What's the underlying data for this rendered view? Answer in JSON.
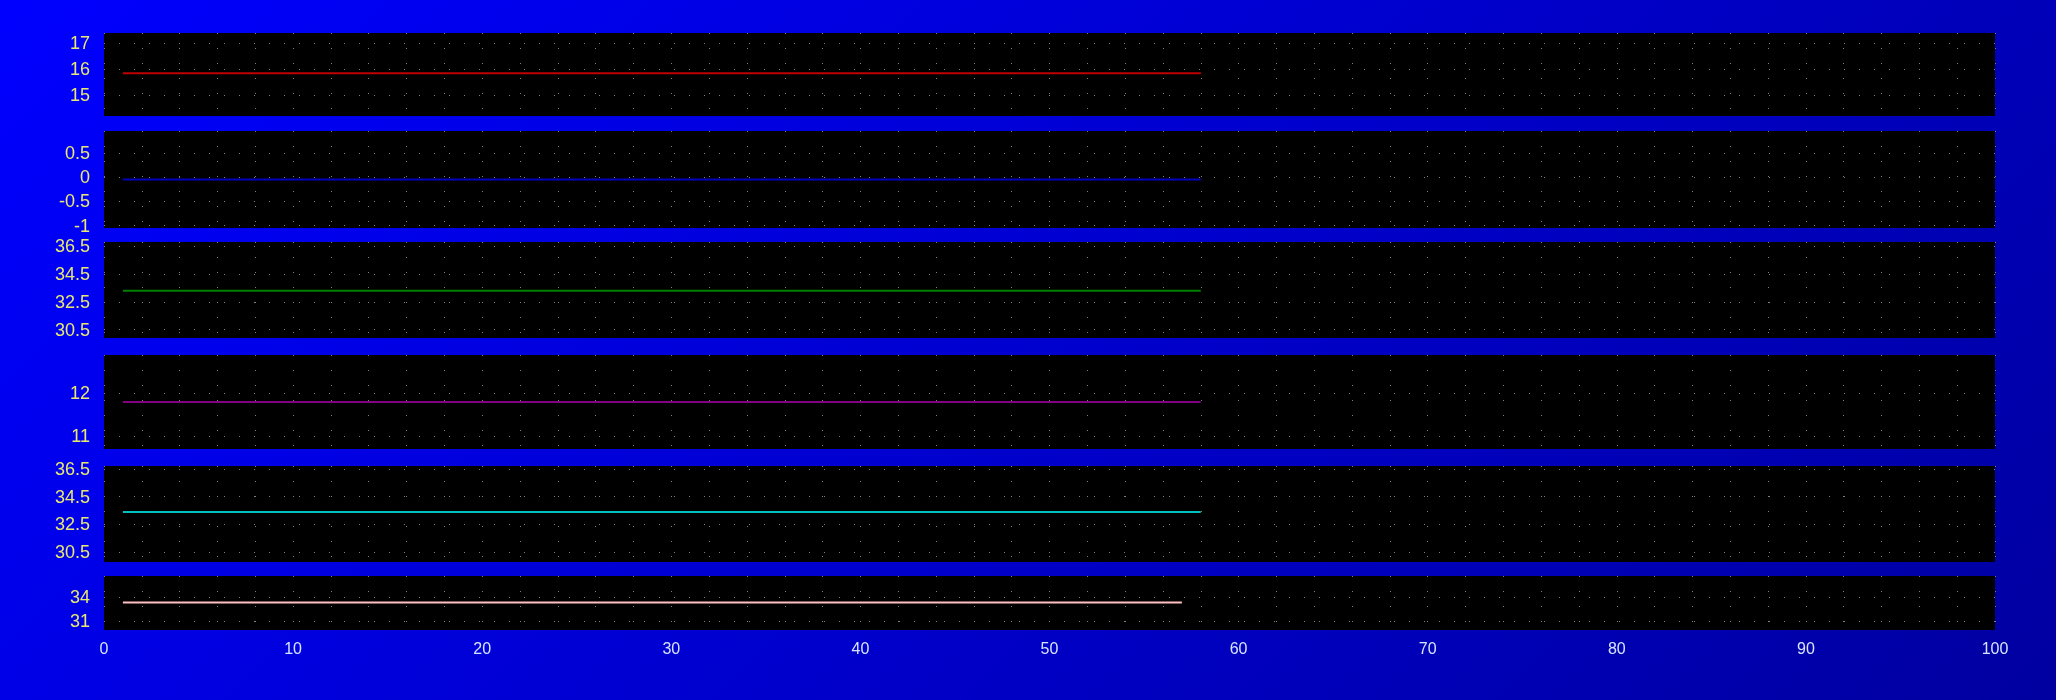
{
  "chart_data": [
    {
      "type": "line",
      "x": [
        1,
        58
      ],
      "values": [
        15.85,
        15.85
      ],
      "color": "#c00000",
      "xlim": [
        0,
        100
      ],
      "xticks": [
        0,
        10,
        20,
        30,
        40,
        50,
        60,
        70,
        80,
        90,
        100
      ],
      "ylim": [
        14.2,
        17.4
      ],
      "yticks": [
        15,
        16,
        17
      ],
      "grid": true,
      "tick_labels": "y"
    },
    {
      "type": "line",
      "x": [
        1,
        58
      ],
      "values": [
        -0.05,
        -0.05
      ],
      "color": "#0000c0",
      "xlim": [
        0,
        100
      ],
      "xticks": [
        0,
        10,
        20,
        30,
        40,
        50,
        60,
        70,
        80,
        90,
        100
      ],
      "ylim": [
        -1.05,
        0.95
      ],
      "yticks": [
        -1,
        -0.5,
        0,
        0.5
      ],
      "grid": true,
      "tick_labels": "y"
    },
    {
      "type": "line",
      "x": [
        1,
        58
      ],
      "values": [
        33.3,
        33.3
      ],
      "color": "#008000",
      "xlim": [
        0,
        100
      ],
      "xticks": [
        0,
        10,
        20,
        30,
        40,
        50,
        60,
        70,
        80,
        90,
        100
      ],
      "ylim": [
        29.9,
        36.8
      ],
      "yticks": [
        30.5,
        32.5,
        34.5,
        36.5
      ],
      "grid": true,
      "tick_labels": "y"
    },
    {
      "type": "line",
      "x": [
        1,
        58
      ],
      "values": [
        11.8,
        11.8
      ],
      "color": "#800080",
      "xlim": [
        0,
        100
      ],
      "xticks": [
        0,
        10,
        20,
        30,
        40,
        50,
        60,
        70,
        80,
        90,
        100
      ],
      "ylim": [
        10.7,
        12.9
      ],
      "yticks": [
        11,
        12
      ],
      "grid": true,
      "tick_labels": "y"
    },
    {
      "type": "line",
      "x": [
        1,
        58
      ],
      "values": [
        33.4,
        33.4
      ],
      "color": "#00c0c0",
      "xlim": [
        0,
        100
      ],
      "xticks": [
        0,
        10,
        20,
        30,
        40,
        50,
        60,
        70,
        80,
        90,
        100
      ],
      "ylim": [
        29.8,
        36.7
      ],
      "yticks": [
        30.5,
        32.5,
        34.5,
        36.5
      ],
      "grid": true,
      "tick_labels": "y"
    },
    {
      "type": "line",
      "x": [
        1,
        57
      ],
      "values": [
        33.3,
        33.3
      ],
      "color": "#ffc0c0",
      "xlim": [
        0,
        100
      ],
      "xticks": [
        0,
        10,
        20,
        30,
        40,
        50,
        60,
        70,
        80,
        90,
        100
      ],
      "ylim": [
        29.9,
        36.6
      ],
      "yticks": [
        31,
        34
      ],
      "grid": true
    }
  ]
}
